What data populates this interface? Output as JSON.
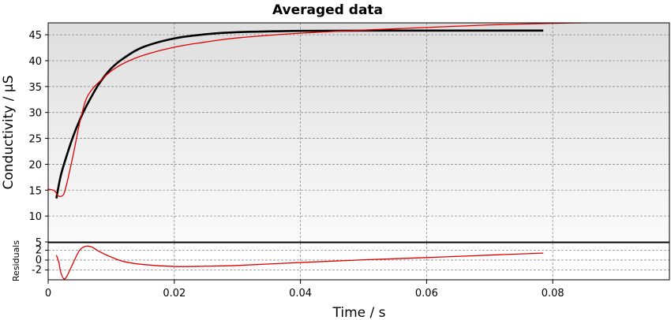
{
  "chart_data": [
    {
      "type": "line",
      "title": "Averaged data",
      "xlabel": "",
      "ylabel": "Conductivity / μS",
      "xlim": [
        0,
        0.0985
      ],
      "ylim": [
        5,
        47.3
      ],
      "yticks": [
        5,
        10,
        15,
        20,
        25,
        30,
        35,
        40,
        45
      ],
      "grid": true,
      "series": [
        {
          "color": "#000000",
          "x": [
            0.0013,
            0.002,
            0.003,
            0.004,
            0.005,
            0.006,
            0.008,
            0.01,
            0.012,
            0.015,
            0.02,
            0.025,
            0.03,
            0.04,
            0.05,
            0.06,
            0.07,
            0.0785
          ],
          "y": [
            13.4,
            17.8,
            21.9,
            25.5,
            28.5,
            31.1,
            35.4,
            38.5,
            40.5,
            42.6,
            44.3,
            45.1,
            45.5,
            45.75,
            45.8,
            45.8,
            45.8,
            45.8
          ]
        },
        {
          "color": "#e00000",
          "x": [
            0.0,
            0.001,
            0.0015,
            0.002,
            0.0025,
            0.003,
            0.004,
            0.005,
            0.006,
            0.007,
            0.008,
            0.01,
            0.012,
            0.015,
            0.02,
            0.025,
            0.03,
            0.04,
            0.05,
            0.06,
            0.07,
            0.08,
            0.09,
            0.095
          ],
          "y": [
            15.2,
            14.9,
            14.0,
            13.8,
            14.3,
            16.5,
            22.0,
            28.0,
            32.5,
            34.5,
            35.8,
            38.0,
            39.5,
            41.0,
            42.6,
            43.6,
            44.4,
            45.3,
            45.9,
            46.4,
            46.9,
            47.2,
            47.4,
            47.5
          ]
        }
      ]
    },
    {
      "type": "line",
      "xlabel": "Time / s",
      "ylabel": "Residuals",
      "xlim": [
        0,
        0.0985
      ],
      "ylim": [
        -4,
        3.5
      ],
      "yticks": [
        -2,
        0,
        2
      ],
      "xticks": [
        0,
        0.02,
        0.04,
        0.06,
        0.08
      ],
      "xticklabels": [
        "0",
        "0.02",
        "0.04",
        "0.06",
        "0.08"
      ],
      "grid": true,
      "series": [
        {
          "color": "#e00000",
          "x": [
            0.0013,
            0.0017,
            0.002,
            0.0025,
            0.003,
            0.004,
            0.005,
            0.006,
            0.007,
            0.008,
            0.01,
            0.012,
            0.015,
            0.02,
            0.025,
            0.03,
            0.04,
            0.05,
            0.06,
            0.07,
            0.0785
          ],
          "y": [
            1.0,
            -0.5,
            -2.5,
            -3.8,
            -3.2,
            -0.5,
            2.0,
            2.8,
            2.6,
            1.8,
            0.6,
            -0.3,
            -0.9,
            -1.3,
            -1.25,
            -1.1,
            -0.5,
            0.05,
            0.5,
            1.0,
            1.4
          ]
        }
      ]
    }
  ]
}
